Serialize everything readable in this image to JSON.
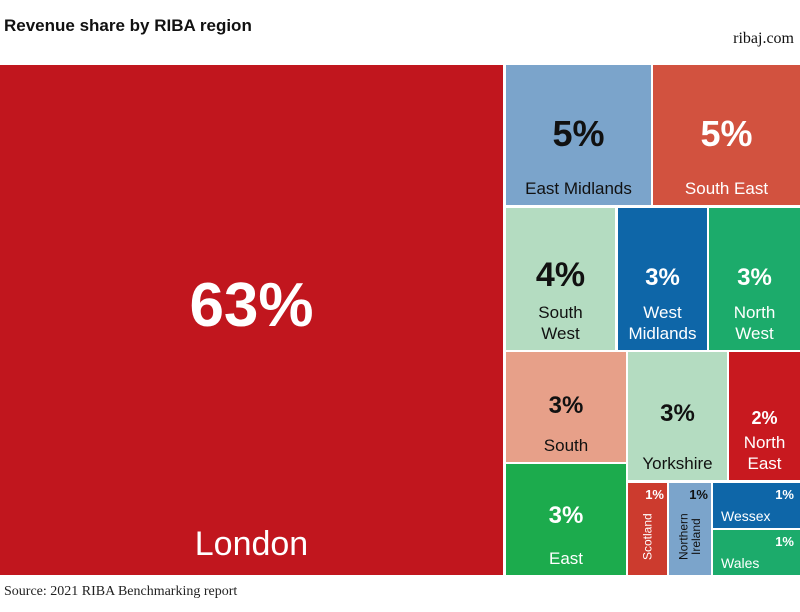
{
  "chart_data": {
    "type": "treemap",
    "title": "Revenue share by RIBA region",
    "site": "ribaj.com",
    "source": "Source: 2021 RIBA Benchmarking report",
    "categories": [
      "London",
      "East Midlands",
      "South East",
      "South West",
      "West Midlands",
      "North West",
      "South",
      "Yorkshire",
      "North East",
      "East",
      "Scotland",
      "Northern Ireland",
      "Wessex",
      "Wales"
    ],
    "values": [
      63,
      5,
      5,
      4,
      3,
      3,
      3,
      3,
      2,
      3,
      1,
      1,
      1,
      1
    ],
    "value_labels": [
      "63%",
      "5%",
      "5%",
      "4%",
      "3%",
      "3%",
      "3%",
      "3%",
      "2%",
      "3%",
      "1%",
      "1%",
      "1%",
      "1%"
    ],
    "colors": [
      "#c1161e",
      "#7ba4cb",
      "#d2523f",
      "#b4dcc1",
      "#0e66a8",
      "#1cab6b",
      "#e7a089",
      "#b4dcc1",
      "#c8191f",
      "#1cab4d",
      "#cc3b2e",
      "#7ba4cb",
      "#0e66a8",
      "#1cab6b"
    ]
  }
}
